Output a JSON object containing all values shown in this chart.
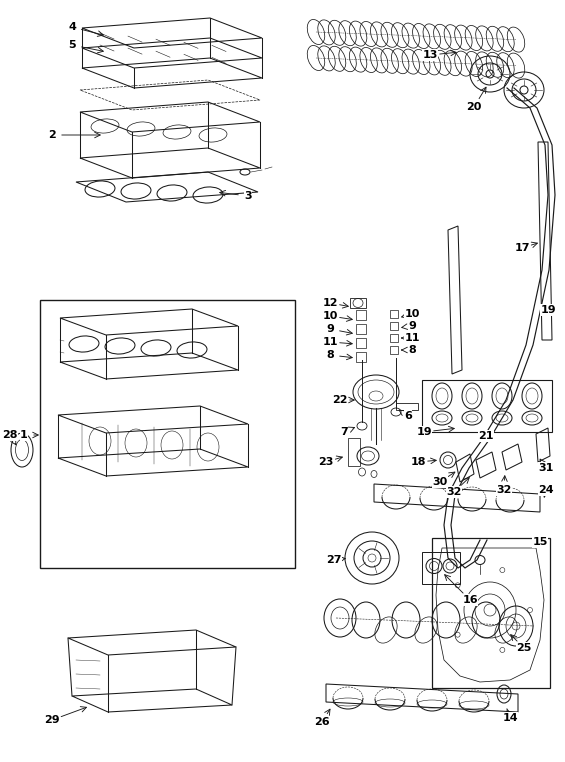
{
  "bg": "#ffffff",
  "lc": "#1a1a1a",
  "lw": 0.75,
  "fig_w": 5.65,
  "fig_h": 7.62,
  "dpi": 100
}
